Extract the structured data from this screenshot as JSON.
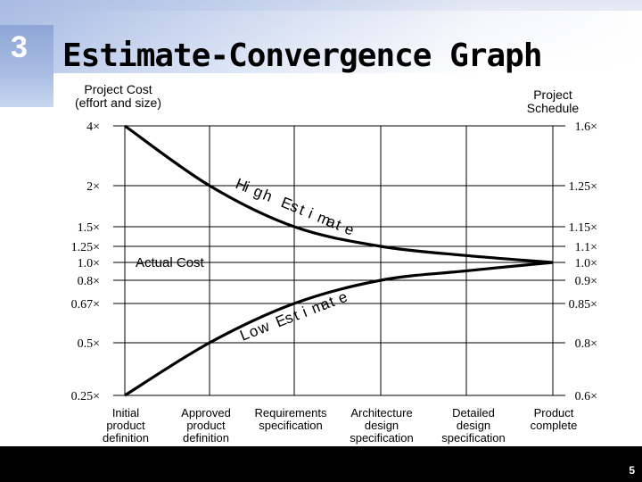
{
  "slide": {
    "number": "3",
    "title": "Estimate-Convergence Graph",
    "page_number": "5"
  },
  "axes": {
    "left_title_line1": "Project Cost",
    "left_title_line2": "(effort and size)",
    "right_title_line1": "Project",
    "right_title_line2": "Schedule"
  },
  "chart_data": {
    "type": "line",
    "left_ticks": [
      "4×",
      "2×",
      "1.5×",
      "1.25×",
      "1.0×",
      "0.8×",
      "0.67×",
      "0.5×",
      "0.25×"
    ],
    "right_ticks": [
      "1.6×",
      "1.25×",
      "1.15×",
      "1.1×",
      "1.0×",
      "0.9×",
      "0.85×",
      "0.8×",
      "0.6×"
    ],
    "categories": [
      [
        "Initial",
        "product",
        "definition"
      ],
      [
        "Approved",
        "product",
        "definition"
      ],
      [
        "Requirements",
        "specification"
      ],
      [
        "Architecture",
        "design",
        "specification"
      ],
      [
        "Detailed",
        "design",
        "specification"
      ],
      [
        "Product",
        "complete"
      ]
    ],
    "series": [
      {
        "name": "High Estimate",
        "values": [
          {
            "x": 0,
            "y": 4.0
          },
          {
            "x": 1,
            "y": 2.0
          },
          {
            "x": 2,
            "y": 1.5
          },
          {
            "x": 3,
            "y": 1.25
          },
          {
            "x": 4,
            "y": 1.1
          },
          {
            "x": 5,
            "y": 1.0
          }
        ]
      },
      {
        "name": "Low Estimate",
        "values": [
          {
            "x": 0,
            "y": 0.25
          },
          {
            "x": 1,
            "y": 0.5
          },
          {
            "x": 2,
            "y": 0.67
          },
          {
            "x": 3,
            "y": 0.8
          },
          {
            "x": 4,
            "y": 0.9
          },
          {
            "x": 5,
            "y": 1.0
          }
        ]
      }
    ],
    "annotations": [
      "High Estimate",
      "Low Estimate",
      "Actual Cost"
    ],
    "grid": true
  },
  "colors": {
    "header_blue": "#b9c9ea",
    "curve": "#000000",
    "grid": "#000000"
  }
}
